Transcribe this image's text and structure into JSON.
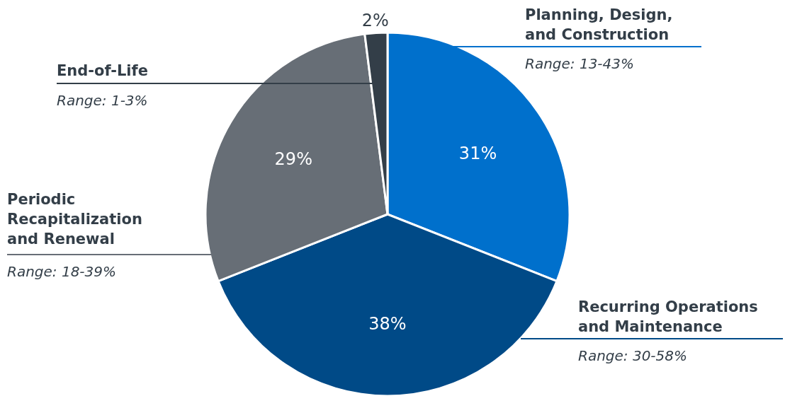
{
  "chart_data": {
    "type": "pie",
    "categories": [
      "Planning, Design, and Construction",
      "Recurring Operations and Maintenance",
      "Periodic Recapitalization and Renewal",
      "End-of-Life"
    ],
    "values": [
      31,
      38,
      29,
      2
    ],
    "colors": [
      "#0070cc",
      "#004a87",
      "#676e76",
      "#333e48"
    ],
    "value_labels": [
      "31%",
      "38%",
      "29%",
      "2%"
    ],
    "annotations": [
      "Range: 13-43%",
      "Range: 30-58%",
      "Range: 18-39%",
      "Range: 1-3%"
    ]
  }
}
